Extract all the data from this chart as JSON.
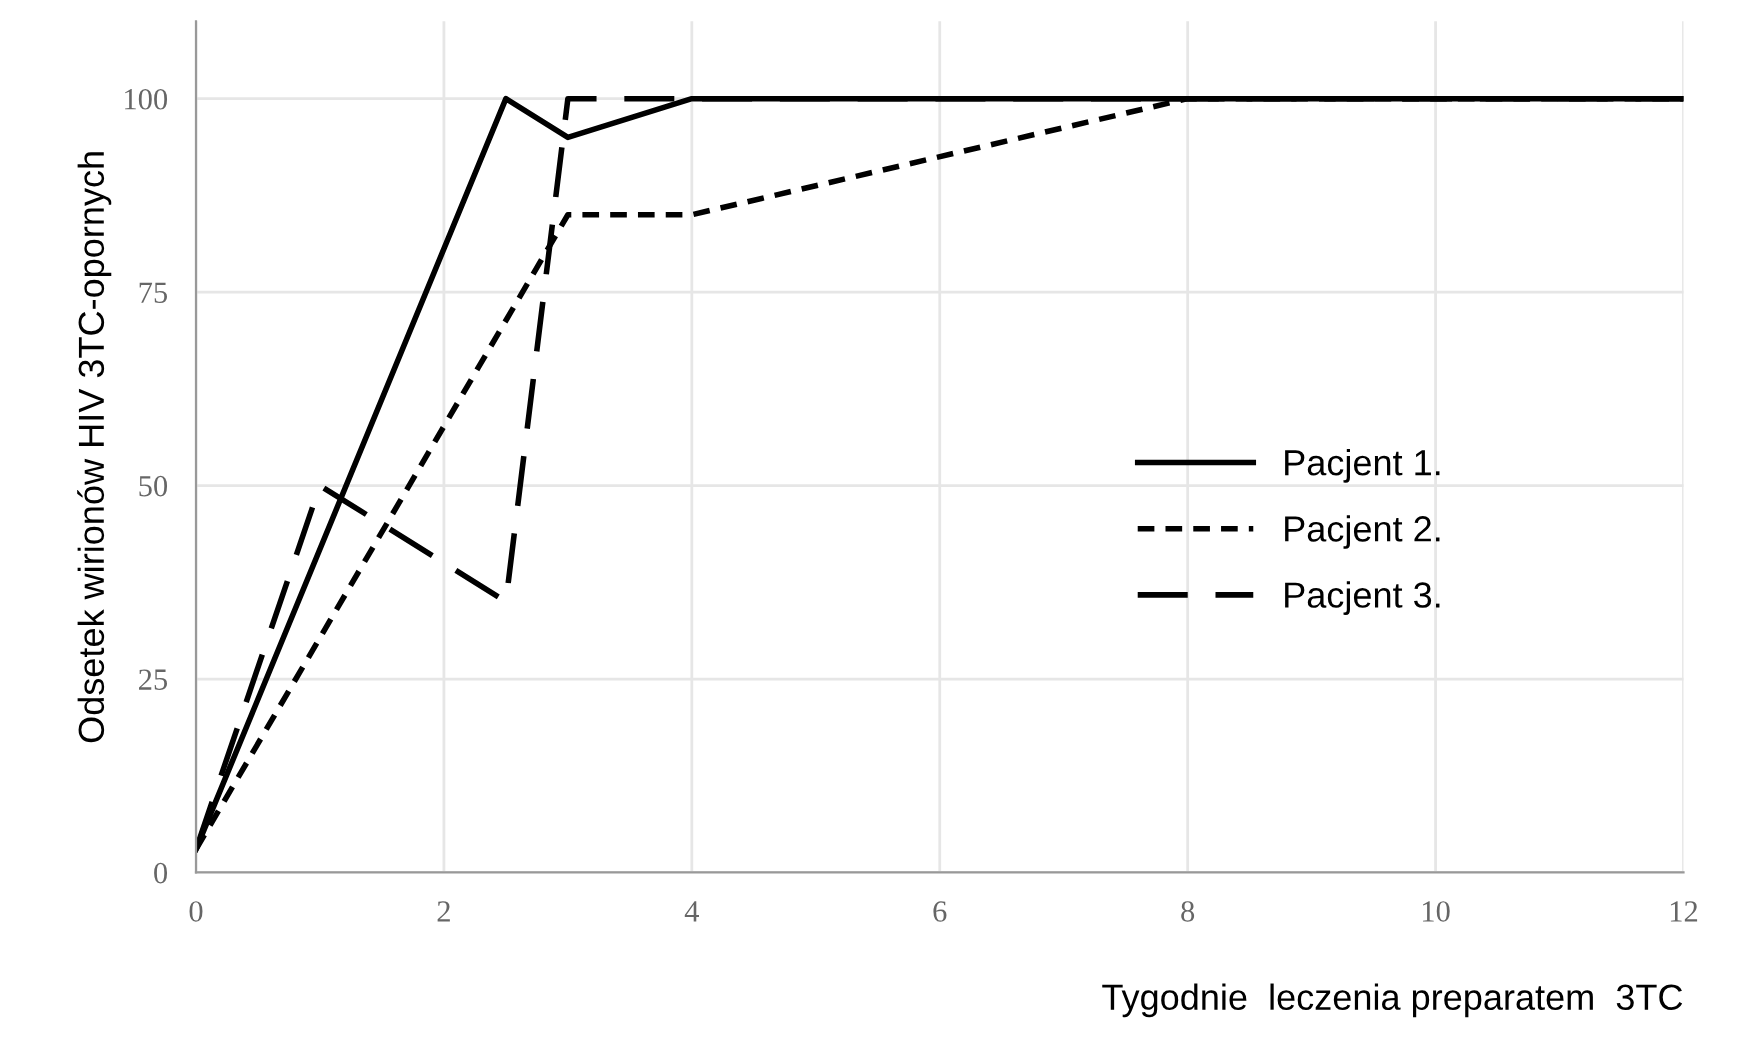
{
  "chart_data": {
    "type": "line",
    "xlabel": "Tygodnie  leczenia preparatem  3TC",
    "ylabel": "Odsetek wirionów HIV 3TC-opornych",
    "xlim": [
      0,
      12
    ],
    "xticks": [
      0,
      2,
      4,
      6,
      8,
      10,
      12
    ],
    "ylim": [
      0,
      110
    ],
    "yticks": [
      0,
      25,
      50,
      75,
      100
    ],
    "grid": true,
    "legend": "right",
    "marker": "none",
    "series": [
      {
        "name": "Pacjent 1.",
        "color": "#000000",
        "line_style": "solid",
        "x": [
          0,
          2.5,
          3,
          4,
          12
        ],
        "values": [
          3,
          100,
          95,
          100,
          100
        ]
      },
      {
        "name": "Pacjent 2.",
        "color": "#000000",
        "line_style": "dotted",
        "x": [
          0,
          3,
          4,
          8,
          12
        ],
        "values": [
          3,
          85,
          85,
          100,
          100
        ]
      },
      {
        "name": "Pacjent 3.",
        "color": "#000000",
        "line_style": "dashed",
        "x": [
          0,
          1,
          2.5,
          3,
          4,
          12
        ],
        "values": [
          3,
          50,
          35,
          100,
          100,
          100
        ]
      }
    ]
  }
}
